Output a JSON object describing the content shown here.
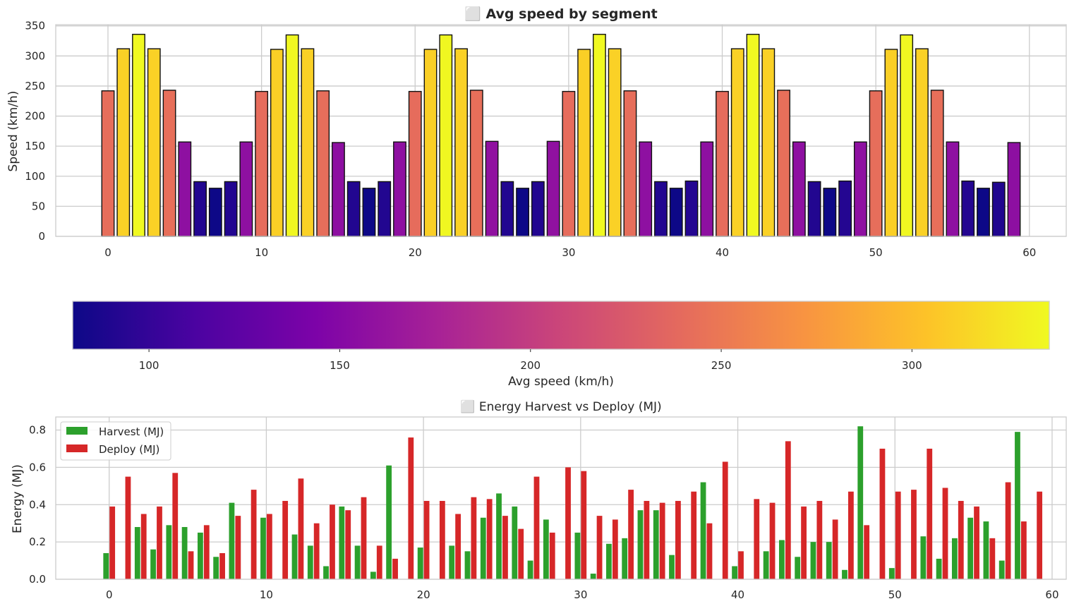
{
  "chart_data": [
    {
      "type": "bar",
      "title": "⬜ Avg speed by segment",
      "xlabel": "",
      "ylabel": "Speed (km/h)",
      "xlim": [
        -3.4,
        62.4
      ],
      "ylim": [
        0,
        352
      ],
      "xticks": [
        0,
        10,
        20,
        30,
        40,
        50,
        60
      ],
      "yticks": [
        0,
        50,
        100,
        150,
        200,
        250,
        300,
        350
      ],
      "grid": true,
      "colormap": "plasma",
      "x": [
        0,
        1,
        2,
        3,
        4,
        5,
        6,
        7,
        8,
        9,
        10,
        11,
        12,
        13,
        14,
        15,
        16,
        17,
        18,
        19,
        20,
        21,
        22,
        23,
        24,
        25,
        26,
        27,
        28,
        29,
        30,
        31,
        32,
        33,
        34,
        35,
        36,
        37,
        38,
        39,
        40,
        41,
        42,
        43,
        44,
        45,
        46,
        47,
        48,
        49,
        50,
        51,
        52,
        53,
        54,
        55,
        56,
        57,
        58,
        59
      ],
      "values": [
        242,
        312,
        336,
        312,
        243,
        157,
        91,
        80,
        91,
        157,
        241,
        311,
        335,
        312,
        242,
        156,
        91,
        80,
        91,
        157,
        241,
        311,
        335,
        312,
        243,
        158,
        91,
        80,
        91,
        158,
        241,
        311,
        336,
        312,
        242,
        157,
        91,
        80,
        92,
        157,
        241,
        312,
        336,
        312,
        243,
        157,
        91,
        80,
        92,
        157,
        242,
        311,
        335,
        312,
        243,
        157,
        92,
        80,
        90,
        156
      ]
    },
    {
      "type": "colorbar",
      "label": "Avg speed (km/h)",
      "range": [
        80,
        336
      ],
      "ticks": [
        100,
        150,
        200,
        250,
        300
      ],
      "colormap": "plasma"
    },
    {
      "type": "bar",
      "title": "⬜ Energy Harvest vs Deploy (MJ)",
      "xlabel": "",
      "ylabel": "Energy (MJ)",
      "xlim": [
        -3.4,
        60.9
      ],
      "ylim": [
        0,
        0.87
      ],
      "xticks": [
        0,
        10,
        20,
        30,
        40,
        50,
        60
      ],
      "yticks": [
        0.0,
        0.2,
        0.4,
        0.6,
        0.8
      ],
      "grid": true,
      "legend_position": "top-left",
      "x": [
        0,
        1,
        2,
        3,
        4,
        5,
        6,
        7,
        8,
        9,
        10,
        11,
        12,
        13,
        14,
        15,
        16,
        17,
        18,
        19,
        20,
        21,
        22,
        23,
        24,
        25,
        26,
        27,
        28,
        29,
        30,
        31,
        32,
        33,
        34,
        35,
        36,
        37,
        38,
        39,
        40,
        41,
        42,
        43,
        44,
        45,
        46,
        47,
        48,
        49,
        50,
        51,
        52,
        53,
        54,
        55,
        56,
        57,
        58,
        59
      ],
      "series": [
        {
          "name": "Harvest (MJ)",
          "color": "#2ca02c",
          "values": [
            0.14,
            0,
            0.28,
            0.16,
            0.29,
            0.28,
            0.25,
            0.12,
            0.41,
            0,
            0.33,
            0,
            0.24,
            0.18,
            0.07,
            0.39,
            0.18,
            0.04,
            0.61,
            0,
            0.17,
            0,
            0.18,
            0.15,
            0.33,
            0.46,
            0.39,
            0.1,
            0.32,
            0,
            0.25,
            0.03,
            0.19,
            0.22,
            0.37,
            0.37,
            0.13,
            0,
            0.52,
            0,
            0.07,
            0,
            0.15,
            0.21,
            0.12,
            0.2,
            0.2,
            0.05,
            0.82,
            0,
            0.06,
            0,
            0.23,
            0.11,
            0.22,
            0.33,
            0.31,
            0.1,
            0.79,
            0
          ]
        },
        {
          "name": "Deploy (MJ)",
          "color": "#d62728",
          "values": [
            0.39,
            0.55,
            0.35,
            0.39,
            0.57,
            0.15,
            0.29,
            0.14,
            0.34,
            0.48,
            0.35,
            0.42,
            0.54,
            0.3,
            0.4,
            0.37,
            0.44,
            0.18,
            0.11,
            0.76,
            0.42,
            0.42,
            0.35,
            0.44,
            0.43,
            0.34,
            0.27,
            0.55,
            0.25,
            0.6,
            0.58,
            0.34,
            0.32,
            0.48,
            0.42,
            0.41,
            0.42,
            0.47,
            0.3,
            0.63,
            0.15,
            0.43,
            0.41,
            0.74,
            0.39,
            0.42,
            0.32,
            0.47,
            0.29,
            0.7,
            0.47,
            0.48,
            0.7,
            0.49,
            0.42,
            0.39,
            0.22,
            0.52,
            0.31,
            0.47
          ]
        }
      ]
    }
  ]
}
